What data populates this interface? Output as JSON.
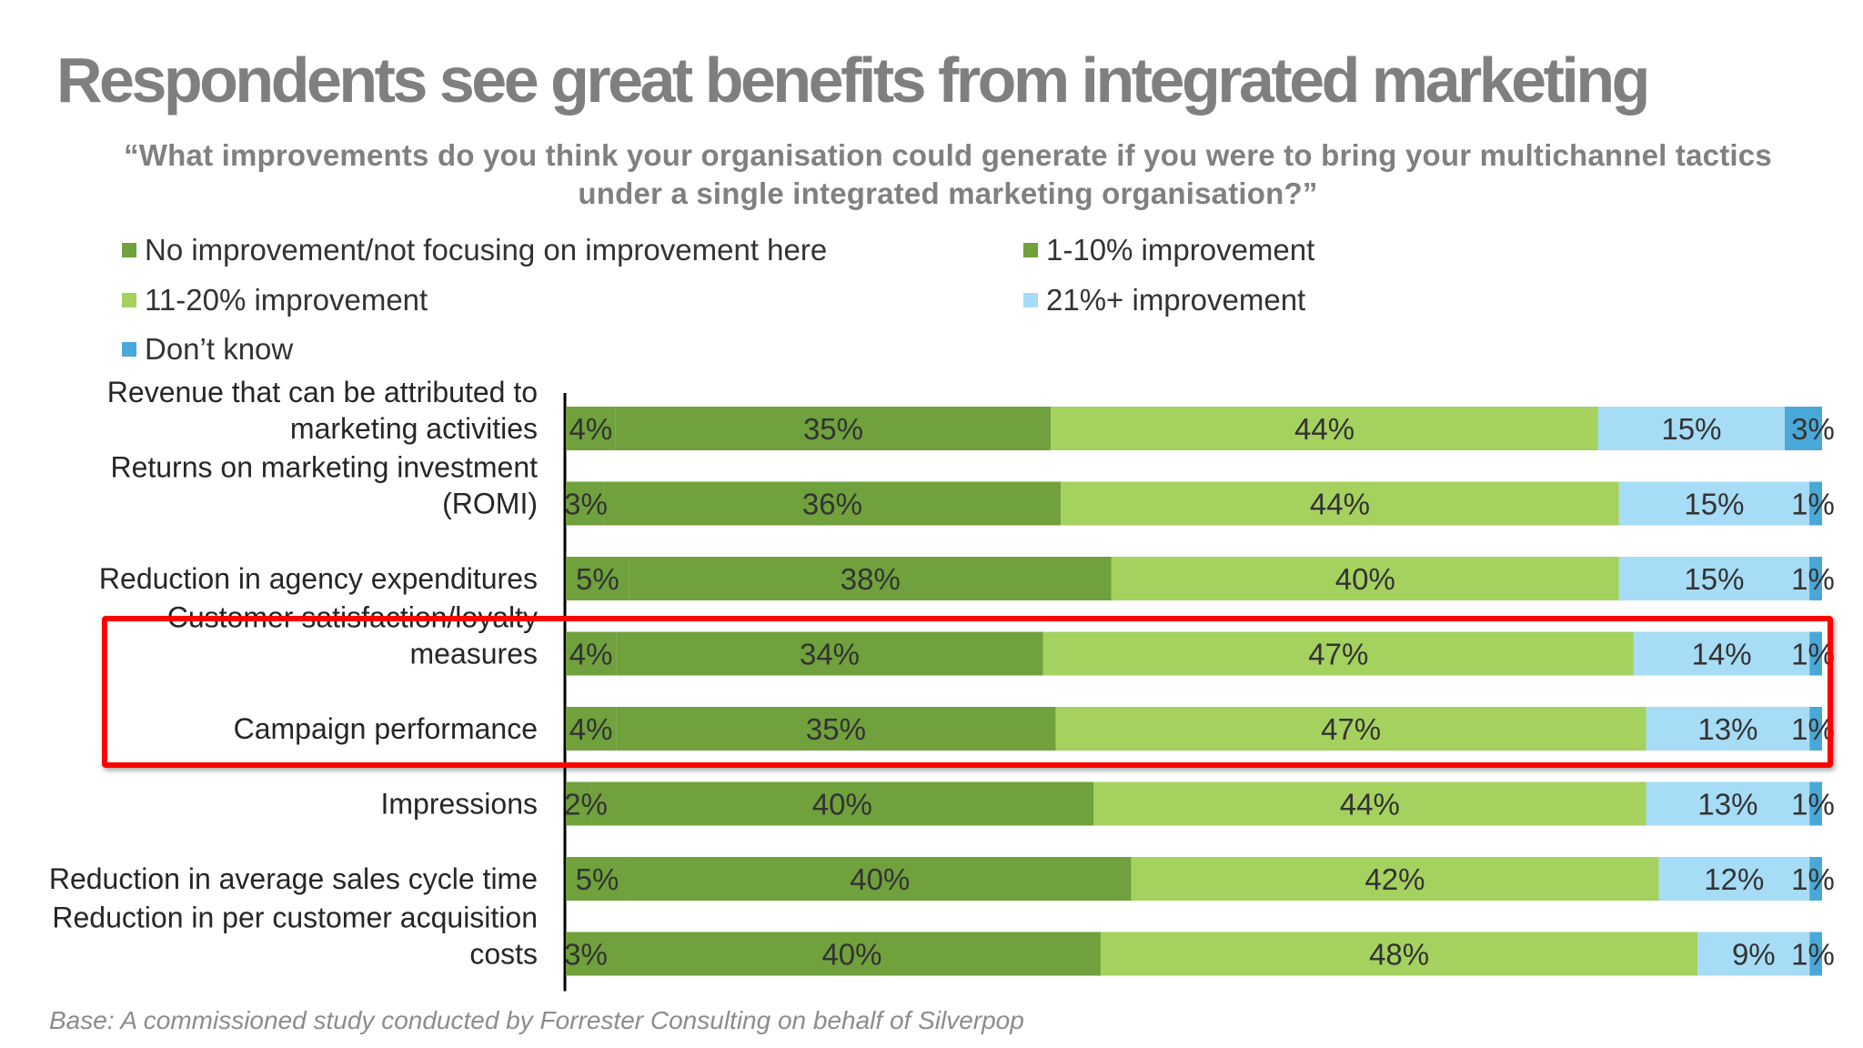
{
  "title": "Respondents see great benefits from integrated marketing",
  "question": {
    "line1": "“What improvements do you think your organisation could generate if you were to bring your multichannel tactics",
    "line2": "under a single integrated marketing organisation?”"
  },
  "legend": [
    {
      "label": "No improvement/not focusing on improvement here",
      "color": "#70a13c"
    },
    {
      "label": "1-10% improvement",
      "color": "#70a13c"
    },
    {
      "label": "11-20% improvement",
      "color": "#a5d15f"
    },
    {
      "label": "21%+ improvement",
      "color": "#a6dcf5"
    },
    {
      "label": "Don’t know",
      "color": "#4aa8d8"
    }
  ],
  "base_note": "Base: A commissioned study conducted by Forrester Consulting on behalf of Silverpop",
  "chart_data": {
    "type": "bar",
    "orientation": "horizontal",
    "stacked": true,
    "unit": "%",
    "categories": [
      [
        "Revenue that can be attributed to",
        "marketing activities"
      ],
      [
        "Returns on marketing investment",
        "(ROMI)"
      ],
      [
        "Reduction in agency expenditures"
      ],
      [
        "Customer satisfaction/loyalty",
        "measures"
      ],
      [
        "Campaign performance"
      ],
      [
        "Impressions"
      ],
      [
        "Reduction in average sales cycle time"
      ],
      [
        "Reduction in per customer acquisition",
        "costs"
      ]
    ],
    "series": [
      {
        "name": "No improvement/not focusing on improvement here",
        "color": "#70a13c",
        "values": [
          4,
          3,
          5,
          4,
          4,
          2,
          5,
          3
        ]
      },
      {
        "name": "1-10% improvement",
        "color": "#70a13c",
        "values": [
          35,
          36,
          38,
          34,
          35,
          40,
          40,
          40
        ]
      },
      {
        "name": "11-20% improvement",
        "color": "#a5d15f",
        "values": [
          44,
          44,
          40,
          47,
          47,
          44,
          42,
          48
        ]
      },
      {
        "name": "21%+ improvement",
        "color": "#a6dcf5",
        "values": [
          15,
          15,
          15,
          14,
          13,
          13,
          12,
          9
        ]
      },
      {
        "name": "Don’t know",
        "color": "#4aa8d8",
        "values": [
          3,
          1,
          1,
          1,
          1,
          1,
          1,
          1
        ]
      }
    ],
    "highlighted_categories": [
      3,
      4
    ],
    "highlight_color": "#ff0000"
  }
}
